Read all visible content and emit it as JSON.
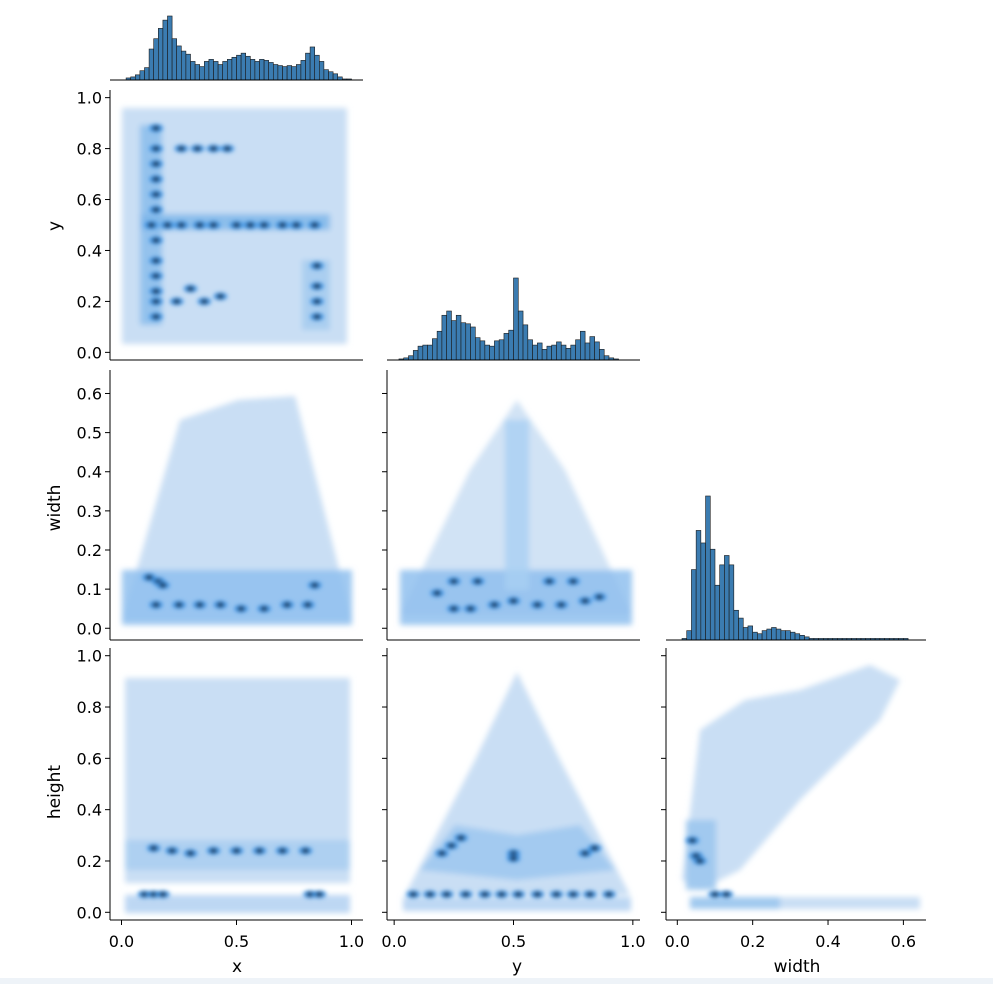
{
  "chart_data": {
    "type": "pairplot-corner",
    "kind": "hist",
    "variables": [
      "x",
      "y",
      "width",
      "height"
    ],
    "colors": {
      "bar_fill": "#3b7cb1",
      "bar_edge": "#1a1a1a",
      "density_light": "#c6dcf3",
      "density_mid": "#3f97ea",
      "density_dark": "#1a2c45"
    },
    "axes": {
      "x": {
        "label": "x",
        "range": [
          -0.05,
          1.05
        ],
        "ticks": [
          0.0,
          0.5,
          1.0
        ],
        "tick_labels": [
          "0.0",
          "0.5",
          "1.0"
        ]
      },
      "y": {
        "label": "y",
        "range": [
          -0.03,
          1.03
        ],
        "ticks": [
          0.0,
          0.2,
          0.4,
          0.6,
          0.8,
          1.0
        ],
        "tick_labels": [
          "0.0",
          "0.2",
          "0.4",
          "0.6",
          "0.8",
          "1.0"
        ],
        "col_ticks": [
          0.0,
          0.5,
          1.0
        ],
        "col_tick_labels": [
          "0.0",
          "0.5",
          "1.0"
        ]
      },
      "width": {
        "label": "width",
        "range": [
          -0.03,
          0.66
        ],
        "ticks": [
          0.0,
          0.1,
          0.2,
          0.3,
          0.4,
          0.5,
          0.6
        ],
        "tick_labels": [
          "0.0",
          "0.1",
          "0.2",
          "0.3",
          "0.4",
          "0.5",
          "0.6"
        ],
        "col_ticks": [
          0.0,
          0.2,
          0.4,
          0.6
        ],
        "col_tick_labels": [
          "0.0",
          "0.2",
          "0.4",
          "0.6"
        ]
      },
      "height": {
        "label": "height",
        "range": [
          -0.03,
          1.03
        ],
        "ticks": [
          0.0,
          0.2,
          0.4,
          0.6,
          0.8,
          1.0
        ],
        "tick_labels": [
          "0.0",
          "0.2",
          "0.4",
          "0.6",
          "0.8",
          "1.0"
        ]
      }
    },
    "diagonal": {
      "x": {
        "bin_start": 0.02,
        "bin_width": 0.02,
        "counts": [
          2,
          3,
          5,
          9,
          12,
          30,
          40,
          50,
          58,
          62,
          40,
          33,
          28,
          25,
          18,
          15,
          13,
          18,
          20,
          18,
          15,
          18,
          20,
          22,
          24,
          26,
          23,
          20,
          18,
          20,
          19,
          17,
          15,
          14,
          13,
          14,
          13,
          15,
          19,
          26,
          32,
          24,
          18,
          10,
          8,
          6,
          3,
          1,
          1
        ]
      },
      "y": {
        "bin_start": 0.02,
        "bin_width": 0.02,
        "counts": [
          1,
          2,
          4,
          9,
          13,
          14,
          14,
          20,
          27,
          42,
          46,
          37,
          42,
          35,
          34,
          31,
          21,
          18,
          14,
          13,
          18,
          19,
          25,
          28,
          77,
          46,
          33,
          19,
          14,
          16,
          10,
          13,
          14,
          17,
          14,
          11,
          14,
          19,
          27,
          16,
          22,
          17,
          10,
          4,
          2,
          1
        ]
      },
      "width": {
        "bin_start": 0.0,
        "bin_width": 0.0125,
        "counts": [
          0,
          1,
          6,
          45,
          70,
          62,
          92,
          58,
          35,
          48,
          54,
          48,
          19,
          14,
          8,
          9,
          5,
          4,
          6,
          7,
          8,
          7,
          6,
          6,
          5,
          4,
          3,
          2,
          1,
          1,
          1,
          1,
          1,
          1,
          1,
          1,
          1,
          1,
          1,
          1,
          1,
          1,
          1,
          1,
          1,
          1,
          1,
          1,
          1
        ]
      }
    },
    "joint": [
      {
        "x": "x",
        "y": "y",
        "hotspots": [
          [
            0.15,
            0.88
          ],
          [
            0.15,
            0.8
          ],
          [
            0.15,
            0.74
          ],
          [
            0.15,
            0.68
          ],
          [
            0.15,
            0.62
          ],
          [
            0.15,
            0.56
          ],
          [
            0.15,
            0.44
          ],
          [
            0.15,
            0.36
          ],
          [
            0.15,
            0.3
          ],
          [
            0.15,
            0.24
          ],
          [
            0.15,
            0.2
          ],
          [
            0.15,
            0.14
          ],
          [
            0.13,
            0.5
          ],
          [
            0.2,
            0.5
          ],
          [
            0.26,
            0.5
          ],
          [
            0.34,
            0.5
          ],
          [
            0.4,
            0.5
          ],
          [
            0.5,
            0.5
          ],
          [
            0.56,
            0.5
          ],
          [
            0.62,
            0.5
          ],
          [
            0.7,
            0.5
          ],
          [
            0.76,
            0.5
          ],
          [
            0.84,
            0.5
          ],
          [
            0.26,
            0.8
          ],
          [
            0.33,
            0.8
          ],
          [
            0.4,
            0.8
          ],
          [
            0.46,
            0.8
          ],
          [
            0.24,
            0.2
          ],
          [
            0.3,
            0.25
          ],
          [
            0.36,
            0.2
          ],
          [
            0.43,
            0.22
          ],
          [
            0.85,
            0.34
          ],
          [
            0.85,
            0.26
          ],
          [
            0.85,
            0.2
          ],
          [
            0.85,
            0.14
          ]
        ]
      },
      {
        "x": "x",
        "y": "width",
        "hotspots": [
          [
            0.16,
            0.12
          ],
          [
            0.18,
            0.11
          ],
          [
            0.12,
            0.13
          ],
          [
            0.84,
            0.11
          ],
          [
            0.15,
            0.06
          ],
          [
            0.25,
            0.06
          ],
          [
            0.34,
            0.06
          ],
          [
            0.43,
            0.06
          ],
          [
            0.52,
            0.05
          ],
          [
            0.62,
            0.05
          ],
          [
            0.72,
            0.06
          ],
          [
            0.81,
            0.06
          ]
        ]
      },
      {
        "x": "y",
        "y": "width",
        "hotspots": [
          [
            0.18,
            0.09
          ],
          [
            0.25,
            0.05
          ],
          [
            0.32,
            0.05
          ],
          [
            0.42,
            0.06
          ],
          [
            0.5,
            0.07
          ],
          [
            0.6,
            0.06
          ],
          [
            0.7,
            0.06
          ],
          [
            0.8,
            0.07
          ],
          [
            0.86,
            0.08
          ],
          [
            0.25,
            0.12
          ],
          [
            0.35,
            0.12
          ],
          [
            0.65,
            0.12
          ],
          [
            0.75,
            0.12
          ]
        ]
      },
      {
        "x": "x",
        "y": "height",
        "hotspots": [
          [
            0.1,
            0.07
          ],
          [
            0.14,
            0.07
          ],
          [
            0.18,
            0.07
          ],
          [
            0.82,
            0.07
          ],
          [
            0.86,
            0.07
          ],
          [
            0.14,
            0.25
          ],
          [
            0.22,
            0.24
          ],
          [
            0.3,
            0.23
          ],
          [
            0.4,
            0.24
          ],
          [
            0.5,
            0.24
          ],
          [
            0.6,
            0.24
          ],
          [
            0.7,
            0.24
          ],
          [
            0.8,
            0.24
          ]
        ]
      },
      {
        "x": "y",
        "y": "height",
        "hotspots": [
          [
            0.2,
            0.23
          ],
          [
            0.24,
            0.26
          ],
          [
            0.28,
            0.29
          ],
          [
            0.5,
            0.23
          ],
          [
            0.5,
            0.21
          ],
          [
            0.8,
            0.23
          ],
          [
            0.84,
            0.25
          ],
          [
            0.08,
            0.07
          ],
          [
            0.15,
            0.07
          ],
          [
            0.22,
            0.07
          ],
          [
            0.3,
            0.07
          ],
          [
            0.38,
            0.07
          ],
          [
            0.45,
            0.07
          ],
          [
            0.52,
            0.07
          ],
          [
            0.6,
            0.07
          ],
          [
            0.68,
            0.07
          ],
          [
            0.75,
            0.07
          ],
          [
            0.82,
            0.07
          ],
          [
            0.9,
            0.07
          ]
        ]
      },
      {
        "x": "width",
        "y": "height",
        "hotspots": [
          [
            0.04,
            0.28
          ],
          [
            0.05,
            0.22
          ],
          [
            0.06,
            0.2
          ],
          [
            0.1,
            0.07
          ],
          [
            0.13,
            0.07
          ]
        ]
      }
    ]
  }
}
